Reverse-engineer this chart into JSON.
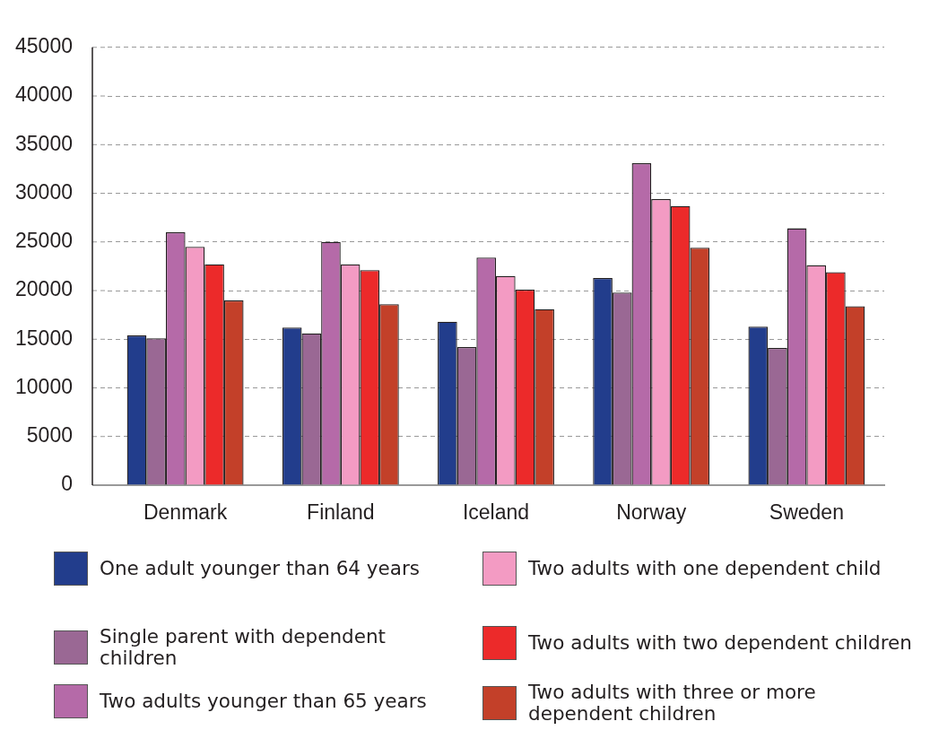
{
  "chart_data": {
    "type": "bar",
    "categories": [
      "Denmark",
      "Finland",
      "Iceland",
      "Norway",
      "Sweden"
    ],
    "series": [
      {
        "name": "One adult younger than 64 years",
        "color": "#223d8c",
        "values": [
          15400,
          16200,
          16800,
          21300,
          16300
        ]
      },
      {
        "name": "Single parent with dependent children",
        "color": "#9a6894",
        "values": [
          15100,
          15600,
          14200,
          19800,
          14100
        ]
      },
      {
        "name": "Two adults younger than 65 years",
        "color": "#b56aa8",
        "values": [
          26000,
          25000,
          23400,
          33100,
          26400
        ]
      },
      {
        "name": "Two adults with one dependent child",
        "color": "#f39bc3",
        "values": [
          24500,
          22700,
          21500,
          29400,
          22600
        ]
      },
      {
        "name": "Two adults with two dependent children",
        "color": "#ec2a2a",
        "values": [
          22700,
          22100,
          20100,
          28700,
          21900
        ]
      },
      {
        "name": "Two adults with three or more dependent children",
        "color": "#c34029",
        "values": [
          19000,
          18600,
          18100,
          24400,
          18400
        ]
      }
    ],
    "ylim": [
      0,
      45000
    ],
    "yticks": [
      0,
      5000,
      10000,
      15000,
      20000,
      25000,
      30000,
      35000,
      40000,
      45000
    ],
    "grid": "y",
    "legend": "bottom"
  }
}
